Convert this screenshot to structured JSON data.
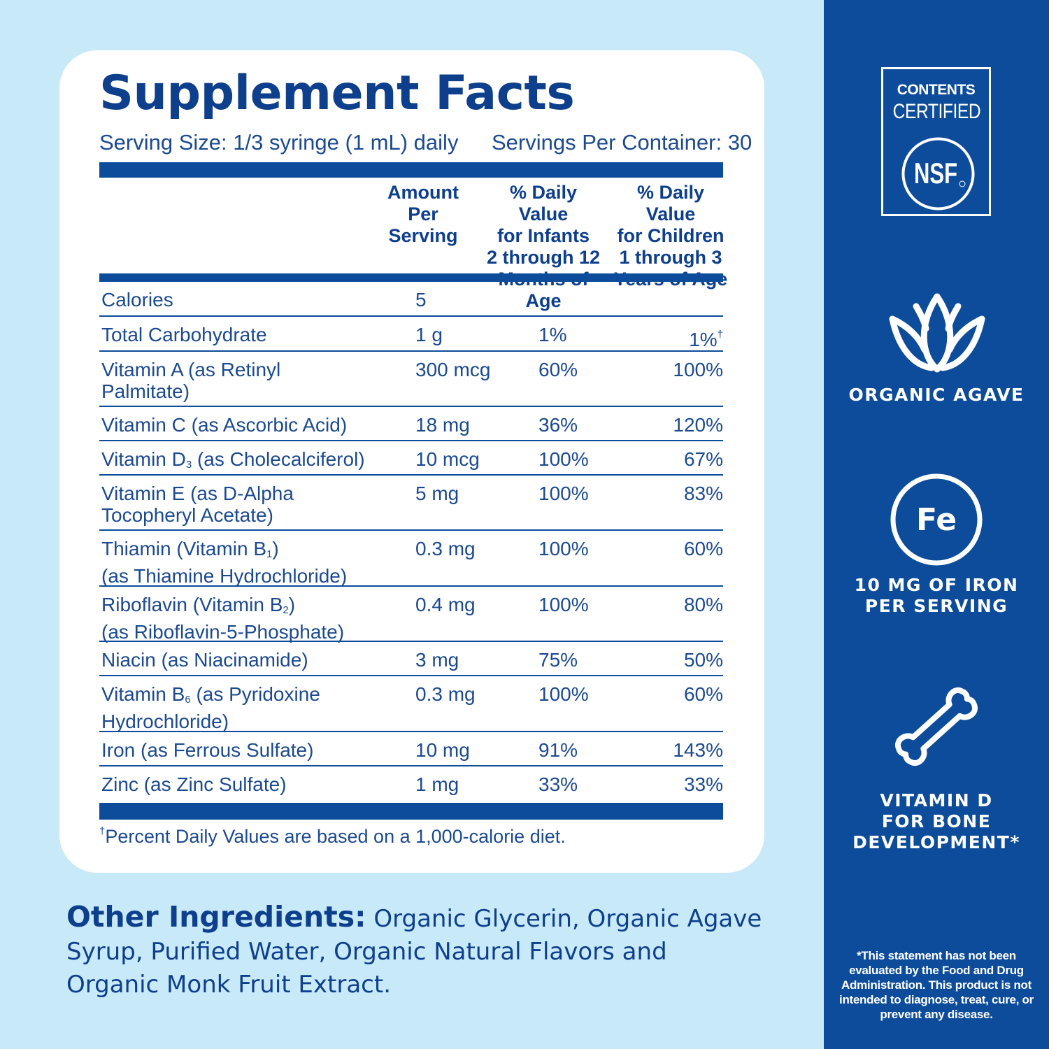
{
  "panel": {
    "nsf_line1": "CONTENTS",
    "nsf_line2": "CERTIFIED",
    "nsf_logo": "NSF",
    "agave_label": "ORGANIC AGAVE",
    "iron_symbol": "Fe",
    "iron_line1": "10 MG OF IRON",
    "iron_line2": "PER SERVING",
    "bone_line1": "VITAMIN D",
    "bone_line2": "FOR BONE",
    "bone_line3": "DEVELOPMENT*",
    "disclaimer": "*This statement has not been evaluated by the Food and Drug Administration. This product is not intended to diagnose, treat, cure, or prevent any disease.",
    "icons": [
      "agave-leaf-icon",
      "iron-fe-icon",
      "bone-icon"
    ],
    "colors": {
      "panel_bg": "#0d4c9a",
      "page_bg": "#c8e9f8",
      "text_navy": "#0e3f8c"
    }
  },
  "facts": {
    "title": "Supplement Facts",
    "serving_size": "Serving Size: 1/3 syringe (1 mL) daily",
    "servings_per_container": "Servings Per Container: 30",
    "headers": {
      "amount": [
        "Amount",
        "Per Serving"
      ],
      "infants": [
        "% Daily Value",
        "for Infants",
        "2 through 12",
        "Months of Age"
      ],
      "children": [
        "% Daily Value",
        "for Children",
        "1 through 3",
        "Years of Age"
      ]
    },
    "rows": [
      {
        "name": "Calories",
        "amount": "5",
        "infants": "",
        "children": ""
      },
      {
        "name": "Total Carbohydrate",
        "amount": "1 g",
        "infants": "1%",
        "children": "1%",
        "children_mark": "†"
      },
      {
        "name": "Vitamin A (as Retinyl Palmitate)",
        "amount": "300 mcg",
        "infants": "60%",
        "children": "100%"
      },
      {
        "name": "Vitamin C (as Ascorbic Acid)",
        "amount": "18 mg",
        "infants": "36%",
        "children": "120%"
      },
      {
        "name_pre": "Vitamin D",
        "name_sub": "3",
        "name_post": " (as Cholecalciferol)",
        "amount": "10 mcg",
        "infants": "100%",
        "children": "67%"
      },
      {
        "name": "Vitamin E (as D-Alpha Tocopheryl Acetate)",
        "amount": "5 mg",
        "infants": "100%",
        "children": "83%"
      },
      {
        "name_pre": "Thiamin (Vitamin B",
        "name_sub": "1",
        "name_post": ")",
        "name_line2": "(as Thiamine Hydrochloride)",
        "amount": "0.3 mg",
        "infants": "100%",
        "children": "60%"
      },
      {
        "name_pre": "Riboflavin (Vitamin B",
        "name_sub": "2",
        "name_post": ")",
        "name_line2": "(as Riboflavin-5-Phosphate)",
        "amount": "0.4 mg",
        "infants": "100%",
        "children": "80%"
      },
      {
        "name": "Niacin (as Niacinamide)",
        "amount": "3 mg",
        "infants": "75%",
        "children": "50%"
      },
      {
        "name_pre": "Vitamin B",
        "name_sub": "6",
        "name_post": " (as Pyridoxine",
        "name_line2": "Hydrochloride)",
        "amount": "0.3 mg",
        "infants": "100%",
        "children": "60%"
      },
      {
        "name": "Iron (as Ferrous Sulfate)",
        "amount": "10 mg",
        "infants": "91%",
        "children": "143%"
      },
      {
        "name": "Zinc (as Zinc Sulfate)",
        "amount": "1 mg",
        "infants": "33%",
        "children": "33%"
      }
    ],
    "footnote_mark": "†",
    "footnote": "Percent Daily Values are based on a 1,000-calorie diet."
  },
  "other_ingredients": {
    "label": "Other Ingredients:",
    "text": " Organic Glycerin, Organic Agave Syrup, Purified Water, Organic Natural Flavors and Organic Monk Fruit Extract."
  }
}
